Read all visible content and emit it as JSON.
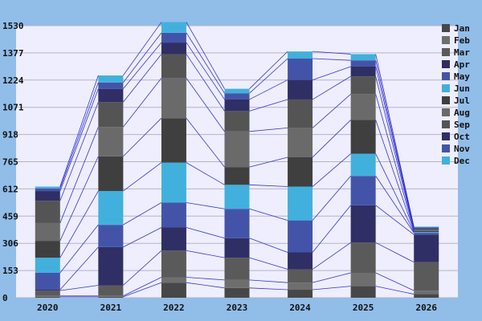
{
  "chart_data": {
    "type": "bar",
    "stacked": true,
    "categories": [
      "2020",
      "2021",
      "2022",
      "2023",
      "2024",
      "2025",
      "2026"
    ],
    "ylim": [
      0,
      1530
    ],
    "yticks": [
      0,
      153,
      306,
      459,
      612,
      765,
      918,
      1071,
      1224,
      1377,
      1530
    ],
    "grid": true,
    "legend_position": "right",
    "connector_lines": true,
    "series": [
      {
        "name": "Jan",
        "color": "#474747",
        "values": [
          5,
          5,
          85,
          55,
          45,
          65,
          20
        ]
      },
      {
        "name": "Feb",
        "color": "#6e6e6e",
        "values": [
          5,
          5,
          30,
          45,
          40,
          75,
          20
        ]
      },
      {
        "name": "Mar",
        "color": "#5a5a5a",
        "values": [
          30,
          60,
          150,
          125,
          75,
          170,
          160
        ]
      },
      {
        "name": "Apr",
        "color": "#2f2f66",
        "values": [
          5,
          215,
          130,
          110,
          95,
          210,
          155
        ]
      },
      {
        "name": "May",
        "color": "#4354a8",
        "values": [
          95,
          125,
          140,
          165,
          180,
          165,
          10
        ]
      },
      {
        "name": "Jun",
        "color": "#42b0dc",
        "values": [
          85,
          190,
          225,
          135,
          190,
          125,
          5
        ]
      },
      {
        "name": "Jul",
        "color": "#3f3f3f",
        "values": [
          95,
          195,
          250,
          100,
          165,
          190,
          5
        ]
      },
      {
        "name": "Aug",
        "color": "#6a6a6a",
        "values": [
          100,
          165,
          225,
          200,
          165,
          145,
          5
        ]
      },
      {
        "name": "Sep",
        "color": "#545454",
        "values": [
          125,
          140,
          135,
          115,
          160,
          100,
          5
        ]
      },
      {
        "name": "Oct",
        "color": "#2f2f66",
        "values": [
          55,
          75,
          65,
          65,
          110,
          55,
          5
        ]
      },
      {
        "name": "Nov",
        "color": "#4354a8",
        "values": [
          15,
          35,
          55,
          35,
          120,
          35,
          5
        ]
      },
      {
        "name": "Dec",
        "color": "#42b0dc",
        "values": [
          10,
          40,
          60,
          25,
          40,
          35,
          5
        ]
      }
    ]
  }
}
